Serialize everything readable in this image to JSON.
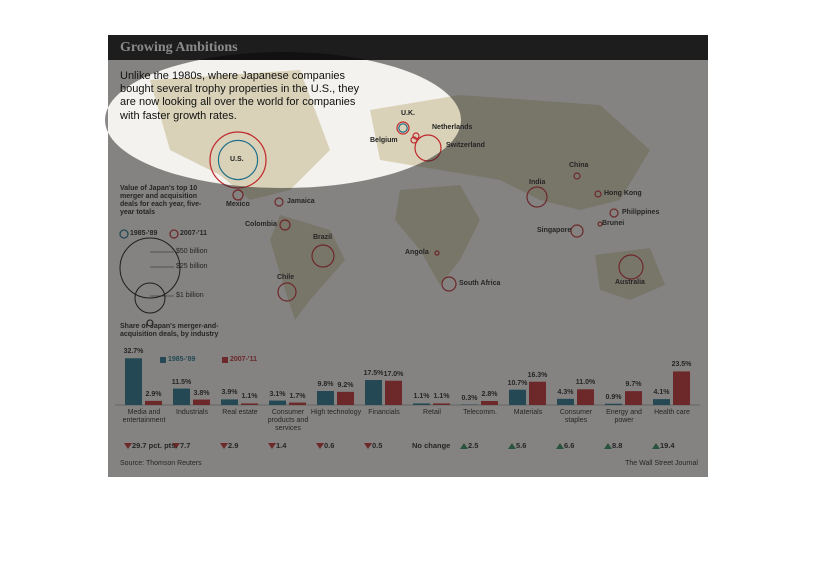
{
  "title": "Growing Ambitions",
  "intro": "Unlike the 1980s, where Japanese companies bought several trophy properties in the U.S., they are now looking all over the world for companies with faster growth rates.",
  "map": {
    "legend_title": "Value of Japan's top 10 merger and acquisition deals for each year, five-year totals",
    "size_labels": [
      "$50 billion",
      "$25 billion",
      "$1 billion"
    ],
    "labels": [
      "U.K.",
      "Netherlands",
      "Belgium",
      "Switzerland",
      "U.S.",
      "Mexico",
      "Jamaica",
      "Colombia",
      "Brazil",
      "Chile",
      "Angola",
      "South Africa",
      "India",
      "China",
      "Hong Kong",
      "Philippines",
      "Singapore",
      "Brunei",
      "Australia"
    ]
  },
  "chart_data": {
    "type": "bar",
    "title": "Share of Japan's merger-and-acquisition deals, by industry",
    "categories": [
      "Media and entertainment",
      "Industrials",
      "Real estate",
      "Consumer products and services",
      "High technology",
      "Financials",
      "Retail",
      "Telecomm.",
      "Materials",
      "Consumer staples",
      "Energy and power",
      "Health care"
    ],
    "ylim": [
      0,
      35
    ],
    "series": [
      {
        "name": "1985-'89",
        "color": "#1f6f8b",
        "values": [
          32.7,
          11.5,
          3.9,
          3.1,
          9.8,
          17.5,
          1.1,
          0.3,
          10.7,
          4.3,
          0.9,
          4.1
        ],
        "value_labels": [
          "32.7%",
          "11.5%",
          "3.9%",
          "3.1%",
          "9.8%",
          "17.5%",
          "1.1%",
          "0.3%",
          "10.7%",
          "4.3%",
          "0.9%",
          "4.1%"
        ]
      },
      {
        "name": "2007-'11",
        "color": "#c0282d",
        "values": [
          2.9,
          3.8,
          1.1,
          1.7,
          9.2,
          17.0,
          1.1,
          2.8,
          16.3,
          11.0,
          9.7,
          23.5
        ],
        "value_labels": [
          "2.9%",
          "3.8%",
          "1.1%",
          "1.7%",
          "9.2%",
          "17.0%",
          "1.1%",
          "2.8%",
          "16.3%",
          "11.0%",
          "9.7%",
          "23.5%"
        ]
      }
    ],
    "changes": [
      {
        "label": "29.7 pct. pts.",
        "direction": "down"
      },
      {
        "label": "7.7",
        "direction": "down"
      },
      {
        "label": "2.9",
        "direction": "down"
      },
      {
        "label": "1.4",
        "direction": "down"
      },
      {
        "label": "0.6",
        "direction": "down"
      },
      {
        "label": "0.5",
        "direction": "down"
      },
      {
        "label": "No change",
        "direction": "none"
      },
      {
        "label": "2.5",
        "direction": "up"
      },
      {
        "label": "5.6",
        "direction": "up"
      },
      {
        "label": "6.6",
        "direction": "up"
      },
      {
        "label": "8.8",
        "direction": "up"
      },
      {
        "label": "19.4",
        "direction": "up"
      }
    ]
  },
  "source": "Source: Thomson Reuters",
  "credit": "The Wall Street Journal"
}
